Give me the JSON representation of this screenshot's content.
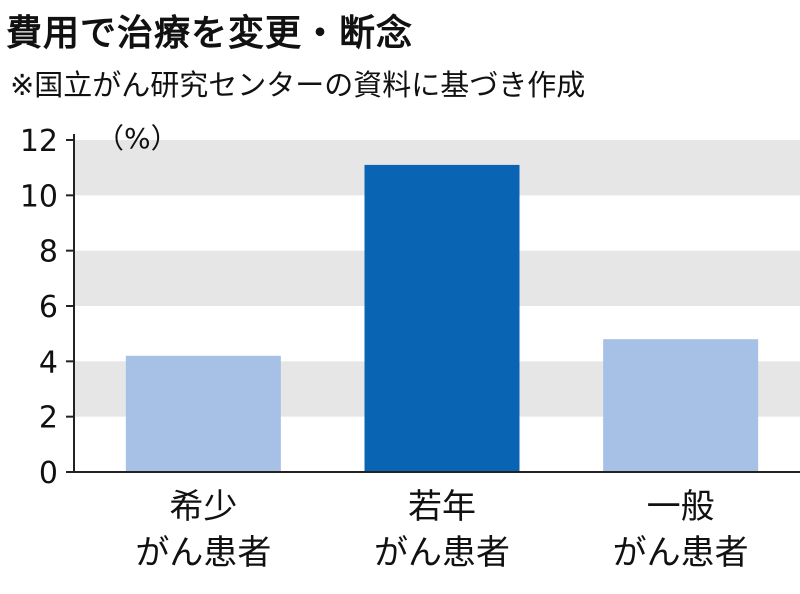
{
  "title": "費用で治療を変更・断念",
  "subtitle": "※国立がん研究センターの資料に基づき作成",
  "colors": {
    "band": "#e6e6e6",
    "axis": "#222222",
    "highlight": "#0a64b4",
    "normal": "#a6c0e6"
  },
  "chart_data": {
    "type": "bar",
    "unit": "（%）",
    "categories": [
      [
        "希少",
        "がん患者"
      ],
      [
        "若年",
        "がん患者"
      ],
      [
        "一般",
        "がん患者"
      ]
    ],
    "values": [
      4.2,
      11.1,
      4.8
    ],
    "highlight_index": 1,
    "ylim": [
      0,
      12
    ],
    "yticks": [
      0,
      2,
      4,
      6,
      8,
      10,
      12
    ],
    "grid": "alternating horizontal bands"
  }
}
